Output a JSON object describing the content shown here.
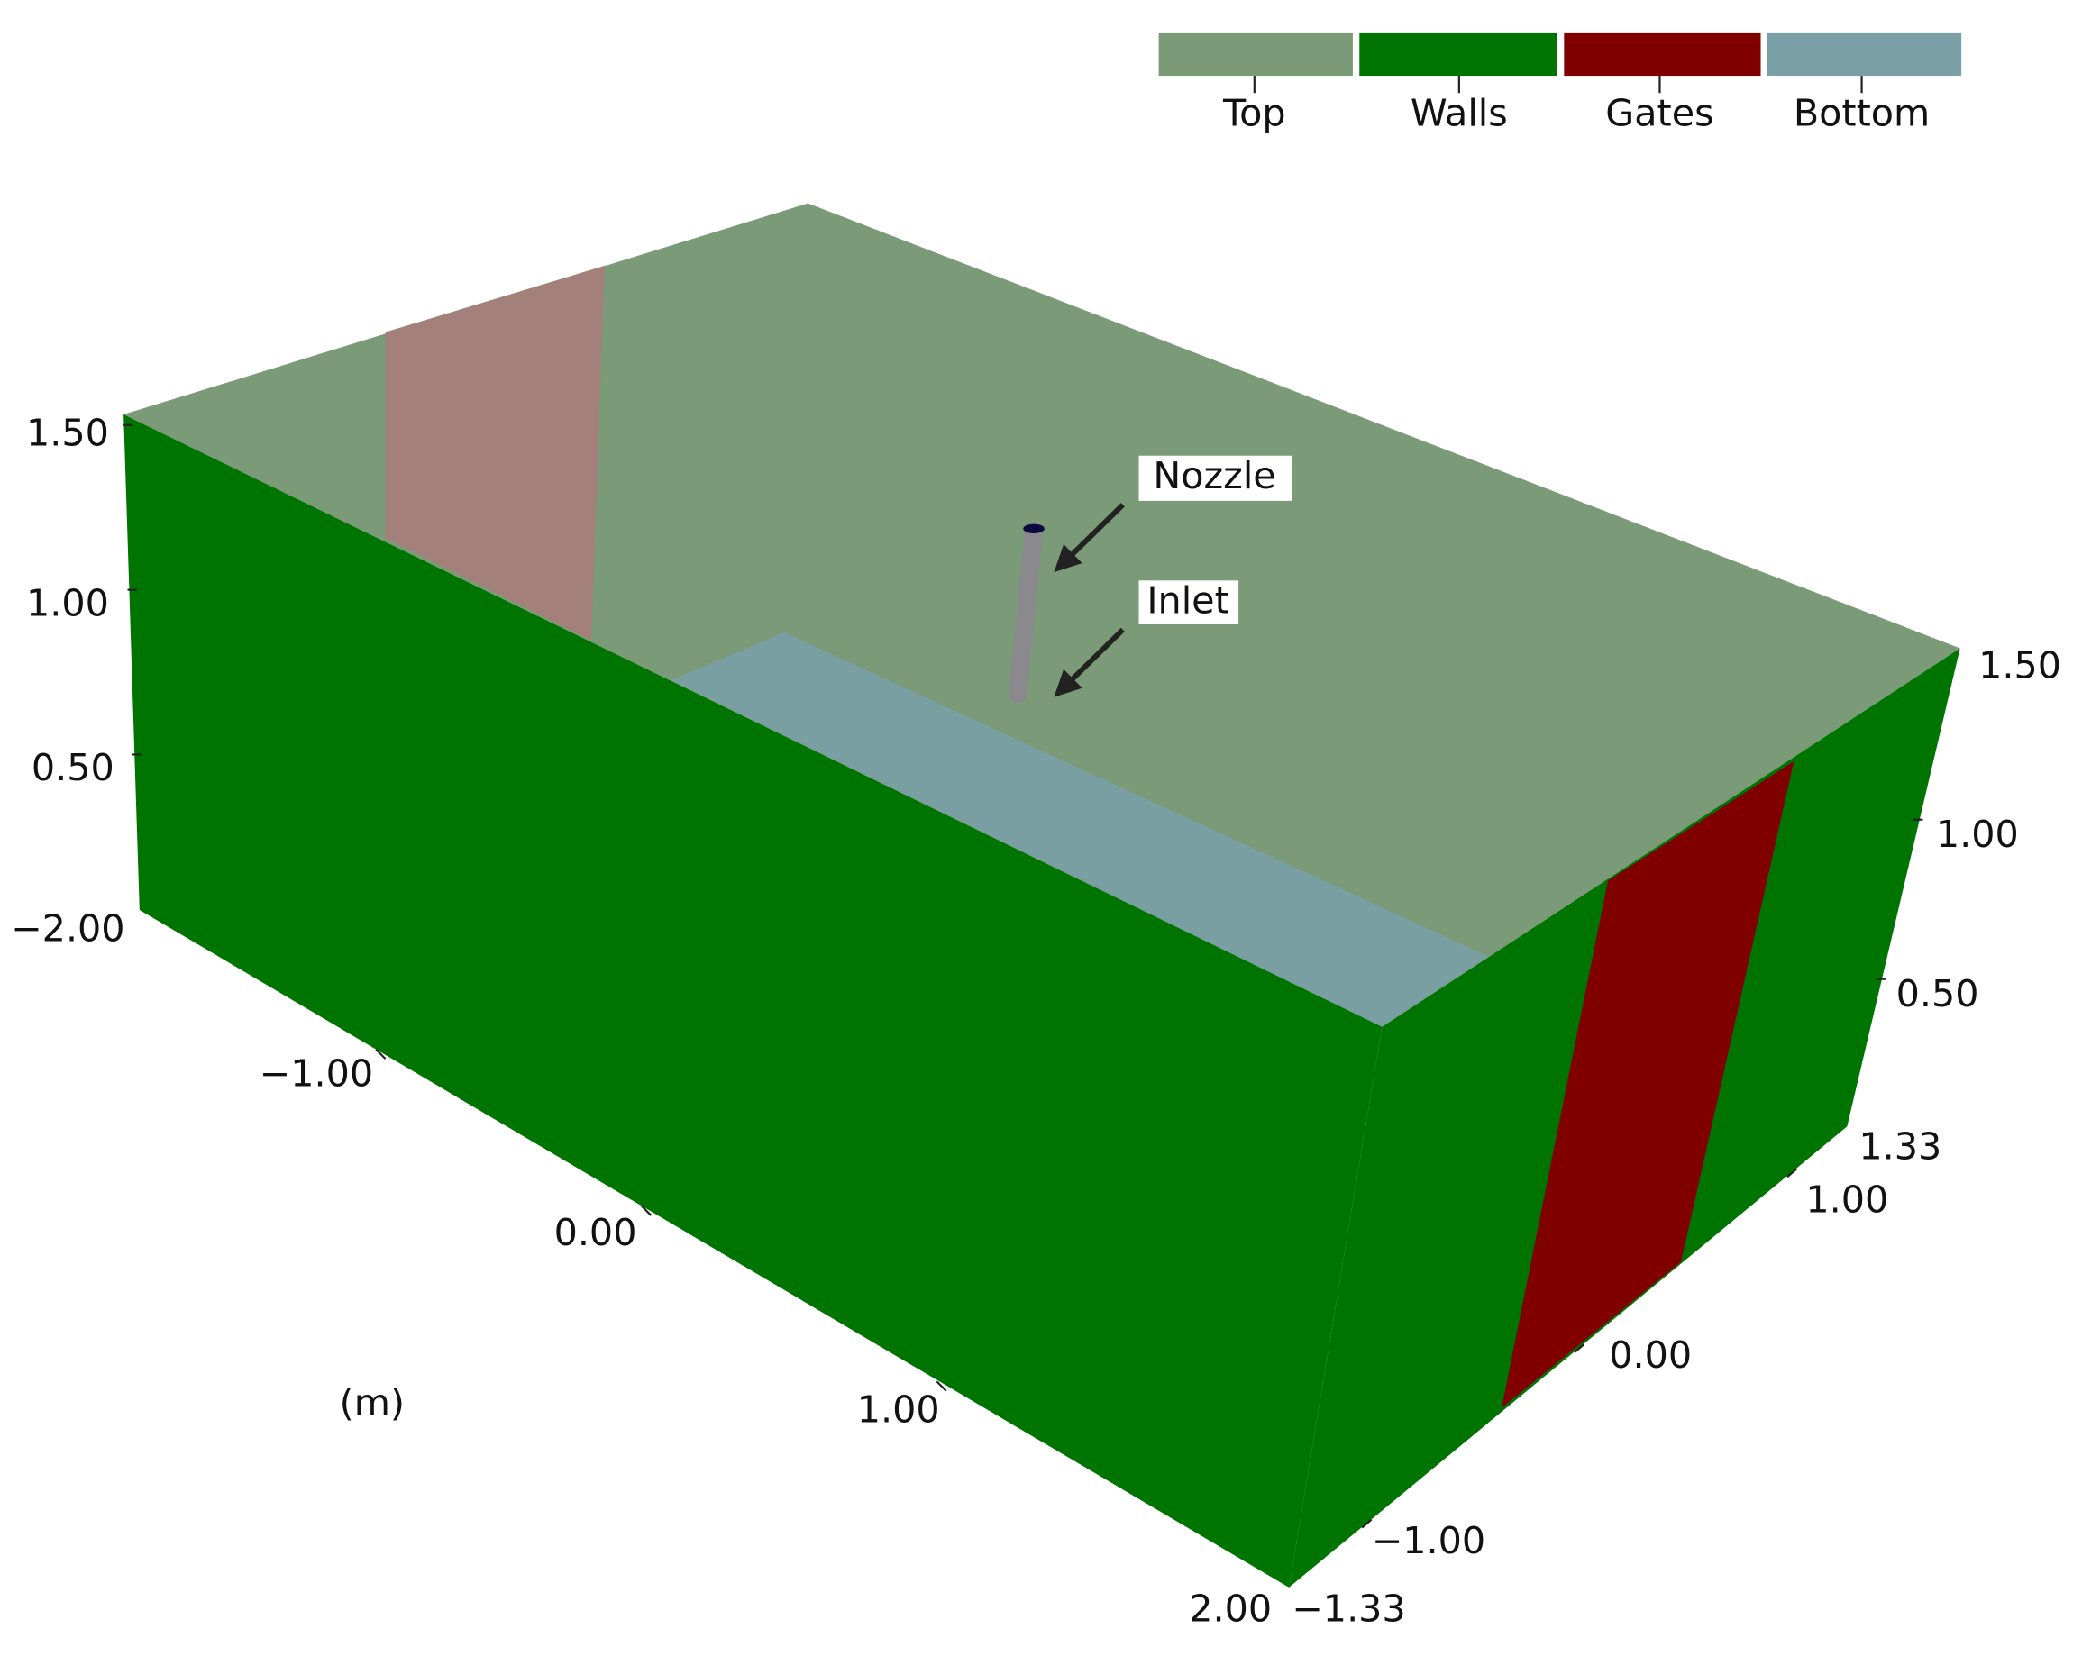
{
  "legend": {
    "items": [
      "Top",
      "Walls",
      "Gates",
      "Bottom"
    ]
  },
  "annotations": {
    "nozzle": "Nozzle",
    "inlet": "Inlet"
  },
  "axes": {
    "left": [
      "1.50",
      "1.00",
      "0.50",
      "−2.00"
    ],
    "bottom": [
      "−1.00",
      "0.00",
      "1.00",
      "2.00"
    ],
    "unit": "(m)",
    "right_z": [
      "1.50",
      "1.00",
      "0.50"
    ],
    "right_y": [
      "1.33",
      "1.00",
      "0.00",
      "−1.00",
      "−1.33"
    ]
  }
}
